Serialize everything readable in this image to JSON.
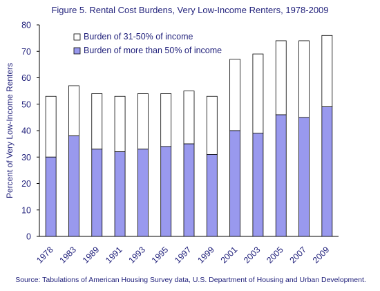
{
  "title": "Figure 5.   Rental Cost Burdens, Very Low-Income Renters, 1978-2009",
  "source": "Source:  Tabulations of American Housing Survey data, U.S. Department of Housing and Urban Development.",
  "colors": {
    "severe": "#9999ee",
    "moderate": "#ffffff",
    "outline": "#000000",
    "text": "#1f1f7a"
  },
  "chart_data": {
    "type": "bar",
    "stacked": true,
    "title": "Figure 5.   Rental Cost Burdens, Very Low-Income Renters, 1978-2009",
    "xlabel": "",
    "ylabel": "Percent of Very Low-Income Renters",
    "ylim": [
      0,
      80
    ],
    "yticks": [
      0,
      10,
      20,
      30,
      40,
      50,
      60,
      70,
      80
    ],
    "grid": false,
    "legend_position": "top-left",
    "categories": [
      "1978",
      "1983",
      "1989",
      "1991",
      "1993",
      "1995",
      "1997",
      "1999",
      "2001",
      "2003",
      "2005",
      "2007",
      "2009"
    ],
    "series": [
      {
        "name": "Burden of more than 50% of income",
        "values": [
          30,
          38,
          33,
          32,
          33,
          34,
          35,
          31,
          40,
          39,
          46,
          45,
          49
        ]
      },
      {
        "name": "Burden of 31-50% of income",
        "values": [
          23,
          19,
          21,
          21,
          21,
          20,
          20,
          22,
          27,
          30,
          28,
          29,
          27
        ]
      }
    ],
    "legend_order": [
      1,
      0
    ]
  }
}
